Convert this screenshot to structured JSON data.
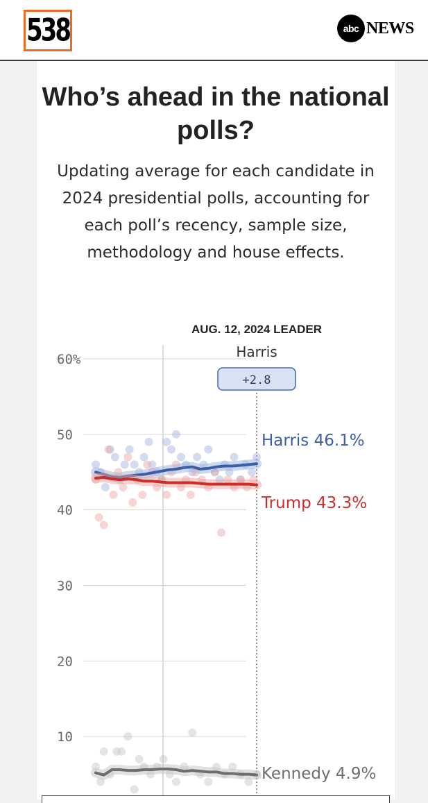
{
  "header": {
    "logo_left": "538",
    "logo_right_abc": "abc",
    "logo_right_news": "NEWS"
  },
  "card": {
    "title": "Who’s ahead in the national polls?",
    "subtitle": "Updating average for each candidate in 2024 presidential polls, accounting for each poll’s recency, sample size, methodology and house effects."
  },
  "chart_data": {
    "type": "line",
    "leader_heading": "AUG. 12, 2024 LEADER",
    "leader_name": "Harris",
    "leader_margin": "+2.8",
    "y_ticks": [
      "60%",
      "50",
      "40",
      "30",
      "20",
      "10"
    ],
    "y_tick_values": [
      60,
      50,
      40,
      30,
      20,
      10
    ],
    "ylim": [
      0,
      60
    ],
    "grid": true,
    "x_range": [
      0,
      10
    ],
    "end_labels": [
      "Harris 46.1%",
      "Trump 43.3%",
      "Kennedy 4.9%"
    ],
    "series": [
      {
        "name": "Harris",
        "color": "#3a5ea8",
        "dot_color": "#9db2db",
        "end_value": 46.1,
        "x": [
          0,
          0.5,
          1,
          1.5,
          2,
          2.5,
          3,
          3.5,
          4,
          4.5,
          5,
          5.5,
          6,
          6.5,
          7,
          7.5,
          8,
          8.5,
          9,
          9.5,
          10
        ],
        "values": [
          45.0,
          44.7,
          44.4,
          44.3,
          44.5,
          44.6,
          44.7,
          44.9,
          45.1,
          45.3,
          45.4,
          45.6,
          45.7,
          45.4,
          45.5,
          45.7,
          45.8,
          45.8,
          45.9,
          46.0,
          46.1
        ],
        "polls_x": [
          0,
          0.3,
          0.6,
          0.9,
          1.2,
          1.5,
          1.8,
          2.1,
          2.4,
          2.7,
          3.0,
          3.3,
          3.5,
          3.8,
          4.1,
          4.4,
          4.7,
          5.0,
          5.3,
          5.6,
          6.0,
          6.3,
          6.7,
          7.0,
          7.4,
          7.7,
          8.0,
          8.3,
          8.6,
          9.0,
          9.3,
          9.7,
          10
        ],
        "polls": [
          46,
          45,
          43,
          48,
          47,
          44,
          46,
          48,
          46,
          45,
          47,
          49,
          46,
          45,
          44,
          49,
          48,
          50,
          47,
          46,
          45,
          47,
          46,
          48,
          45,
          44,
          46,
          45,
          47,
          44,
          46,
          45,
          47
        ]
      },
      {
        "name": "Trump",
        "color": "#c8302c",
        "dot_color": "#eba3a1",
        "end_value": 43.3,
        "x": [
          0,
          0.5,
          1,
          1.5,
          2,
          2.5,
          3,
          3.5,
          4,
          4.5,
          5,
          5.5,
          6,
          6.5,
          7,
          7.5,
          8,
          8.5,
          9,
          9.5,
          10
        ],
        "values": [
          44.2,
          44.3,
          44.1,
          44.0,
          44.1,
          44.0,
          43.8,
          43.8,
          43.7,
          43.6,
          43.6,
          43.6,
          43.6,
          43.5,
          43.4,
          43.4,
          43.4,
          43.4,
          43.4,
          43.4,
          43.3
        ],
        "polls_x": [
          0,
          0.2,
          0.5,
          0.8,
          1.1,
          1.4,
          1.7,
          2.0,
          2.3,
          2.6,
          2.9,
          3.2,
          3.5,
          3.8,
          4.1,
          4.4,
          4.7,
          5.0,
          5.3,
          5.6,
          5.9,
          6.2,
          6.6,
          7.0,
          7.4,
          7.8,
          8.2,
          8.6,
          9.0,
          9.4,
          9.8
        ],
        "polls": [
          44,
          39,
          38,
          48,
          42,
          45,
          43,
          47,
          41,
          44,
          42,
          46,
          45,
          43,
          44,
          42,
          45,
          46,
          43,
          44,
          42,
          45,
          44,
          43,
          45,
          37,
          44,
          43,
          44,
          43,
          44
        ]
      },
      {
        "name": "Kennedy",
        "color": "#6e6e6e",
        "dot_color": "#c4c4c4",
        "end_value": 4.9,
        "x": [
          0,
          0.5,
          1,
          1.5,
          2,
          2.5,
          3,
          3.5,
          4,
          4.5,
          5,
          5.5,
          6,
          6.5,
          7,
          7.5,
          8,
          8.5,
          9,
          9.5,
          10
        ],
        "values": [
          5.2,
          4.9,
          5.6,
          5.6,
          5.5,
          5.5,
          5.6,
          5.6,
          5.7,
          5.7,
          5.6,
          5.4,
          5.5,
          5.4,
          5.3,
          5.3,
          5.1,
          5.1,
          5.0,
          5.0,
          4.9
        ],
        "polls_x": [
          0,
          0.3,
          0.5,
          0.9,
          1.3,
          1.6,
          2.0,
          2.4,
          2.7,
          3.0,
          3.4,
          3.8,
          4.2,
          4.6,
          5.0,
          5.5,
          6.0,
          6.5,
          7.0,
          7.5,
          8.0,
          8.5,
          9.0,
          9.5,
          10
        ],
        "polls": [
          6,
          4,
          8,
          5,
          8,
          8,
          10,
          3,
          7,
          6,
          5,
          6,
          7,
          5,
          4,
          6,
          10.5,
          5,
          4,
          6,
          5,
          6,
          5,
          4,
          5
        ]
      }
    ]
  }
}
